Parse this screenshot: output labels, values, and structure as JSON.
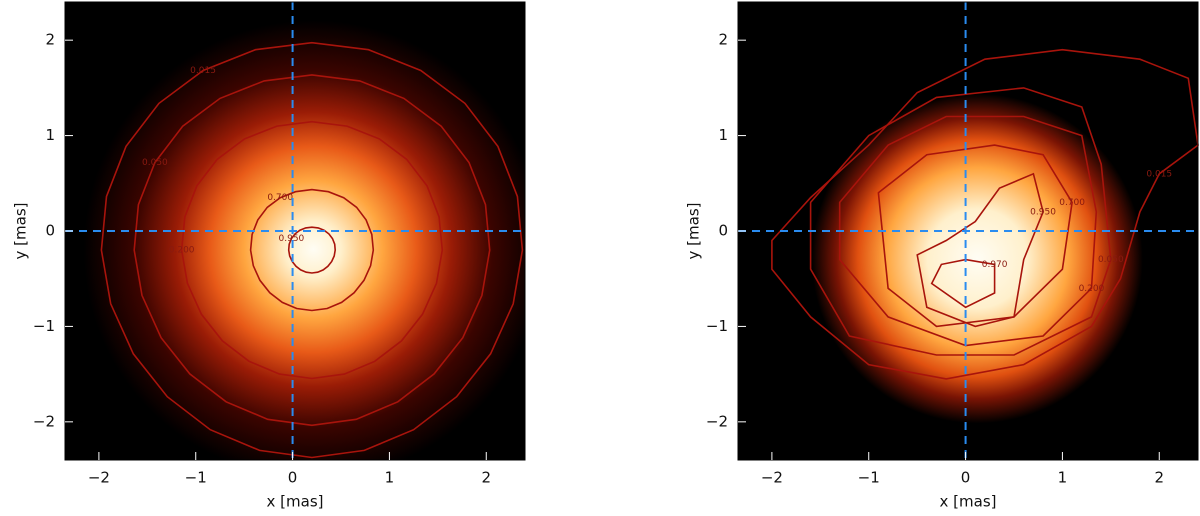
{
  "chart_data": [
    {
      "type": "heatmap",
      "xlabel": "x [mas]",
      "ylabel": "y [mas]",
      "xlim": [
        -2.35,
        2.4
      ],
      "ylim": [
        -2.4,
        2.4
      ],
      "xticks": [
        {
          "value": -2,
          "label": "−2"
        },
        {
          "value": -1,
          "label": "−1"
        },
        0,
        1,
        2
      ],
      "yticks": [
        {
          "value": -2,
          "label": "−2"
        },
        {
          "value": -1,
          "label": "−1"
        },
        0,
        1,
        2
      ],
      "contours": [
        {
          "value": 0.015,
          "label": "0.015"
        },
        {
          "value": 0.05,
          "label": "0.050"
        },
        {
          "value": 0.2,
          "label": "0.200"
        },
        {
          "value": 0.7,
          "label": "0.700"
        },
        {
          "value": 0.95,
          "label": "0.950"
        }
      ]
    },
    {
      "type": "heatmap",
      "xlabel": "x [mas]",
      "ylabel": "y [mas]",
      "xlim": [
        -2.35,
        2.4
      ],
      "ylim": [
        -2.4,
        2.4
      ],
      "xticks": [
        {
          "value": -2,
          "label": "−2"
        },
        {
          "value": -1,
          "label": "−1"
        },
        0,
        1,
        2
      ],
      "yticks": [
        {
          "value": -2,
          "label": "−2"
        },
        {
          "value": -1,
          "label": "−1"
        },
        0,
        1,
        2
      ],
      "contours": [
        {
          "value": 0.015,
          "label": "0.015"
        },
        {
          "value": 0.05,
          "label": "0.050"
        },
        {
          "value": 0.2,
          "label": "0.200"
        },
        {
          "value": 0.7,
          "label": "0.700"
        },
        {
          "value": 0.95,
          "label": "0.950"
        },
        {
          "value": 0.97,
          "label": "0.970"
        }
      ]
    }
  ]
}
